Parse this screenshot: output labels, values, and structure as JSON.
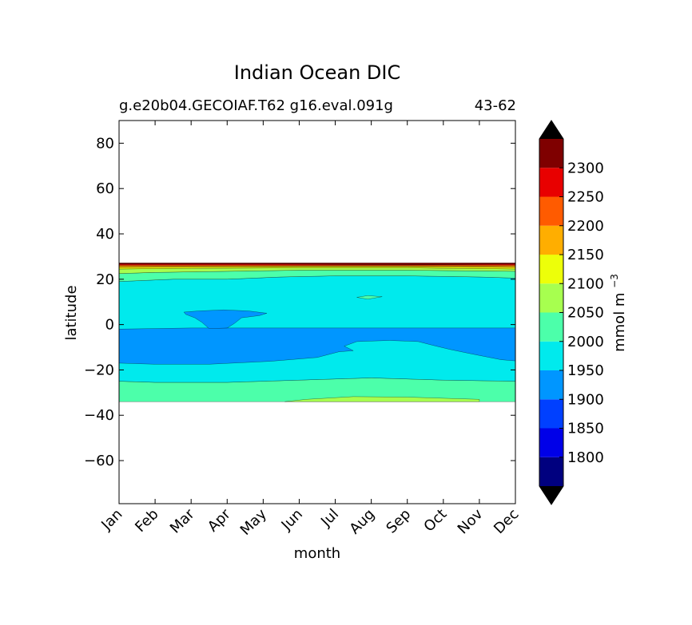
{
  "chart_data": {
    "type": "contourf",
    "title": "Indian Ocean DIC",
    "subtitle_left": "g.e20b04.GECOIAF.T62 g16.eval.091g",
    "subtitle_right": "43-62",
    "xlabel": "month",
    "ylabel": "latitude",
    "x_tick_labels": [
      "Jan",
      "Feb",
      "Mar",
      "Apr",
      "May",
      "Jun",
      "Jul",
      "Aug",
      "Sep",
      "Oct",
      "Nov",
      "Dec"
    ],
    "x_range": [
      0,
      11
    ],
    "y_range": [
      -79,
      90
    ],
    "y_ticks": [
      80,
      60,
      40,
      20,
      0,
      -20,
      -40,
      -60
    ],
    "y_tick_labels": [
      "80",
      "60",
      "40",
      "20",
      "0",
      "−20",
      "−40",
      "−60"
    ],
    "colorbar": {
      "label": "mmol m",
      "label_sup": "−3",
      "levels": [
        1750,
        1800,
        1850,
        1900,
        1950,
        2000,
        2050,
        2100,
        2150,
        2200,
        2250,
        2300,
        2350
      ],
      "tick_values": [
        1800,
        1850,
        1900,
        1950,
        2000,
        2050,
        2100,
        2150,
        2200,
        2250,
        2300
      ],
      "tick_labels": [
        "1800",
        "1850",
        "1900",
        "1950",
        "2000",
        "2050",
        "2100",
        "2150",
        "2200",
        "2250",
        "2300"
      ],
      "colors": [
        "#00007f",
        "#0000e8",
        "#0040ff",
        "#0096ff",
        "#00eaed",
        "#4cffaa",
        "#a7ff4f",
        "#edff09",
        "#ffae00",
        "#ff5b00",
        "#e80000",
        "#7f0000"
      ],
      "extend_low": "#000000",
      "extend_high": "#000000"
    },
    "regions": [
      {
        "name": "south-band-2050",
        "level": 2000,
        "color": "#4cffaa",
        "points": [
          [
            0,
            -34
          ],
          [
            11,
            -34
          ],
          [
            11,
            -25
          ],
          [
            9,
            -24.5
          ],
          [
            7,
            -23.5
          ],
          [
            5,
            -24.5
          ],
          [
            3,
            -25.5
          ],
          [
            1,
            -25.5
          ],
          [
            0,
            -25
          ]
        ]
      },
      {
        "name": "south-patch-2100",
        "level": 2050,
        "color": "#a7ff4f",
        "points": [
          [
            4.6,
            -34
          ],
          [
            10,
            -34
          ],
          [
            10,
            -33
          ],
          [
            8,
            -32
          ],
          [
            6.5,
            -31.8
          ],
          [
            5.2,
            -33
          ]
        ]
      },
      {
        "name": "main-band-1950",
        "level": 1950,
        "color": "#00eaed",
        "points": [
          [
            0,
            -25
          ],
          [
            1,
            -25.5
          ],
          [
            3,
            -25.5
          ],
          [
            5,
            -24.5
          ],
          [
            7,
            -23.5
          ],
          [
            9,
            -24.5
          ],
          [
            11,
            -25
          ],
          [
            11,
            20.5
          ],
          [
            10,
            21
          ],
          [
            8,
            21.5
          ],
          [
            6,
            21.5
          ],
          [
            4.5,
            21
          ],
          [
            3,
            20
          ],
          [
            1.5,
            20
          ],
          [
            0,
            19
          ]
        ]
      },
      {
        "name": "south-pool-1900",
        "level": 1900,
        "color": "#0096ff",
        "points": [
          [
            0,
            -2
          ],
          [
            2,
            -1.5
          ],
          [
            4,
            -1.5
          ],
          [
            6,
            -1.5
          ],
          [
            8,
            -1.5
          ],
          [
            11,
            -1.5
          ],
          [
            11,
            -16
          ],
          [
            10.6,
            -15.5
          ],
          [
            9.8,
            -13
          ],
          [
            9.2,
            -11
          ],
          [
            8.8,
            -9.5
          ],
          [
            8.3,
            -7.5
          ],
          [
            7.5,
            -7
          ],
          [
            6.6,
            -7.5
          ],
          [
            6.25,
            -9.5
          ],
          [
            6.5,
            -11.5
          ],
          [
            6.1,
            -12
          ],
          [
            5.5,
            -14.5
          ],
          [
            4.2,
            -16.2
          ],
          [
            2.5,
            -17.5
          ],
          [
            1,
            -17.5
          ],
          [
            0,
            -17
          ]
        ]
      },
      {
        "name": "north-pool-1900",
        "level": 1900,
        "color": "#0096ff",
        "points": [
          [
            1.8,
            5.5
          ],
          [
            2.2,
            6
          ],
          [
            2.9,
            6.5
          ],
          [
            3.6,
            6
          ],
          [
            4.1,
            5
          ],
          [
            3.9,
            4
          ],
          [
            3.4,
            3
          ],
          [
            3.2,
            0.5
          ],
          [
            3,
            -1.5
          ],
          [
            2.5,
            -1.8
          ],
          [
            2.3,
            1
          ],
          [
            2.1,
            3
          ],
          [
            1.85,
            4.5
          ]
        ]
      },
      {
        "name": "north-band-2000",
        "level": 2000,
        "color": "#4cffaa",
        "points": [
          [
            0,
            19
          ],
          [
            1.5,
            20
          ],
          [
            3,
            20
          ],
          [
            4.5,
            21
          ],
          [
            6,
            21.5
          ],
          [
            8,
            21.5
          ],
          [
            10,
            21
          ],
          [
            11,
            20.5
          ],
          [
            11,
            23.5
          ],
          [
            8,
            24
          ],
          [
            5,
            24
          ],
          [
            3,
            23.5
          ],
          [
            1,
            23
          ],
          [
            0,
            22.5
          ]
        ]
      },
      {
        "name": "north-band-2050",
        "level": 2050,
        "color": "#a7ff4f",
        "points": [
          [
            0,
            22.5
          ],
          [
            1,
            23
          ],
          [
            3,
            23.5
          ],
          [
            5,
            24
          ],
          [
            8,
            24
          ],
          [
            11,
            23.5
          ],
          [
            11,
            24.5
          ],
          [
            8,
            25
          ],
          [
            5,
            25
          ],
          [
            2,
            24.8
          ],
          [
            0,
            24.5
          ]
        ]
      },
      {
        "name": "north-band-2100",
        "level": 2100,
        "color": "#edff09",
        "points": [
          [
            0,
            24.5
          ],
          [
            2,
            24.8
          ],
          [
            5,
            25
          ],
          [
            8,
            25
          ],
          [
            11,
            24.5
          ],
          [
            11,
            25.2
          ],
          [
            8,
            25.6
          ],
          [
            5,
            25.6
          ],
          [
            2,
            25.4
          ],
          [
            0,
            25.2
          ]
        ]
      },
      {
        "name": "north-band-2150",
        "level": 2150,
        "color": "#ffae00",
        "points": [
          [
            0,
            25.2
          ],
          [
            2,
            25.4
          ],
          [
            5,
            25.6
          ],
          [
            8,
            25.6
          ],
          [
            11,
            25.2
          ],
          [
            11,
            25.9
          ],
          [
            0,
            25.9
          ]
        ]
      },
      {
        "name": "north-band-2200",
        "level": 2200,
        "color": "#ff5b00",
        "points": [
          [
            0,
            25.9
          ],
          [
            11,
            25.9
          ],
          [
            11,
            26.3
          ],
          [
            0,
            26.3
          ]
        ]
      },
      {
        "name": "north-band-2250",
        "level": 2250,
        "color": "#e80000",
        "points": [
          [
            0,
            26.3
          ],
          [
            11,
            26.3
          ],
          [
            11,
            26.8
          ],
          [
            0,
            26.8
          ]
        ]
      },
      {
        "name": "north-band-2300",
        "level": 2300,
        "color": "#7f0000",
        "points": [
          [
            0,
            26.8
          ],
          [
            4,
            26.8
          ],
          [
            6,
            26.6
          ],
          [
            8.5,
            26.4
          ],
          [
            11,
            26.8
          ],
          [
            11,
            27.2
          ],
          [
            0,
            27.2
          ]
        ]
      },
      {
        "name": "aug-patch-2000",
        "level": 2000,
        "color": "#4cffaa",
        "points": [
          [
            6.6,
            12
          ],
          [
            6.9,
            12.8
          ],
          [
            7.3,
            12.3
          ],
          [
            6.9,
            11.2
          ]
        ]
      }
    ]
  }
}
